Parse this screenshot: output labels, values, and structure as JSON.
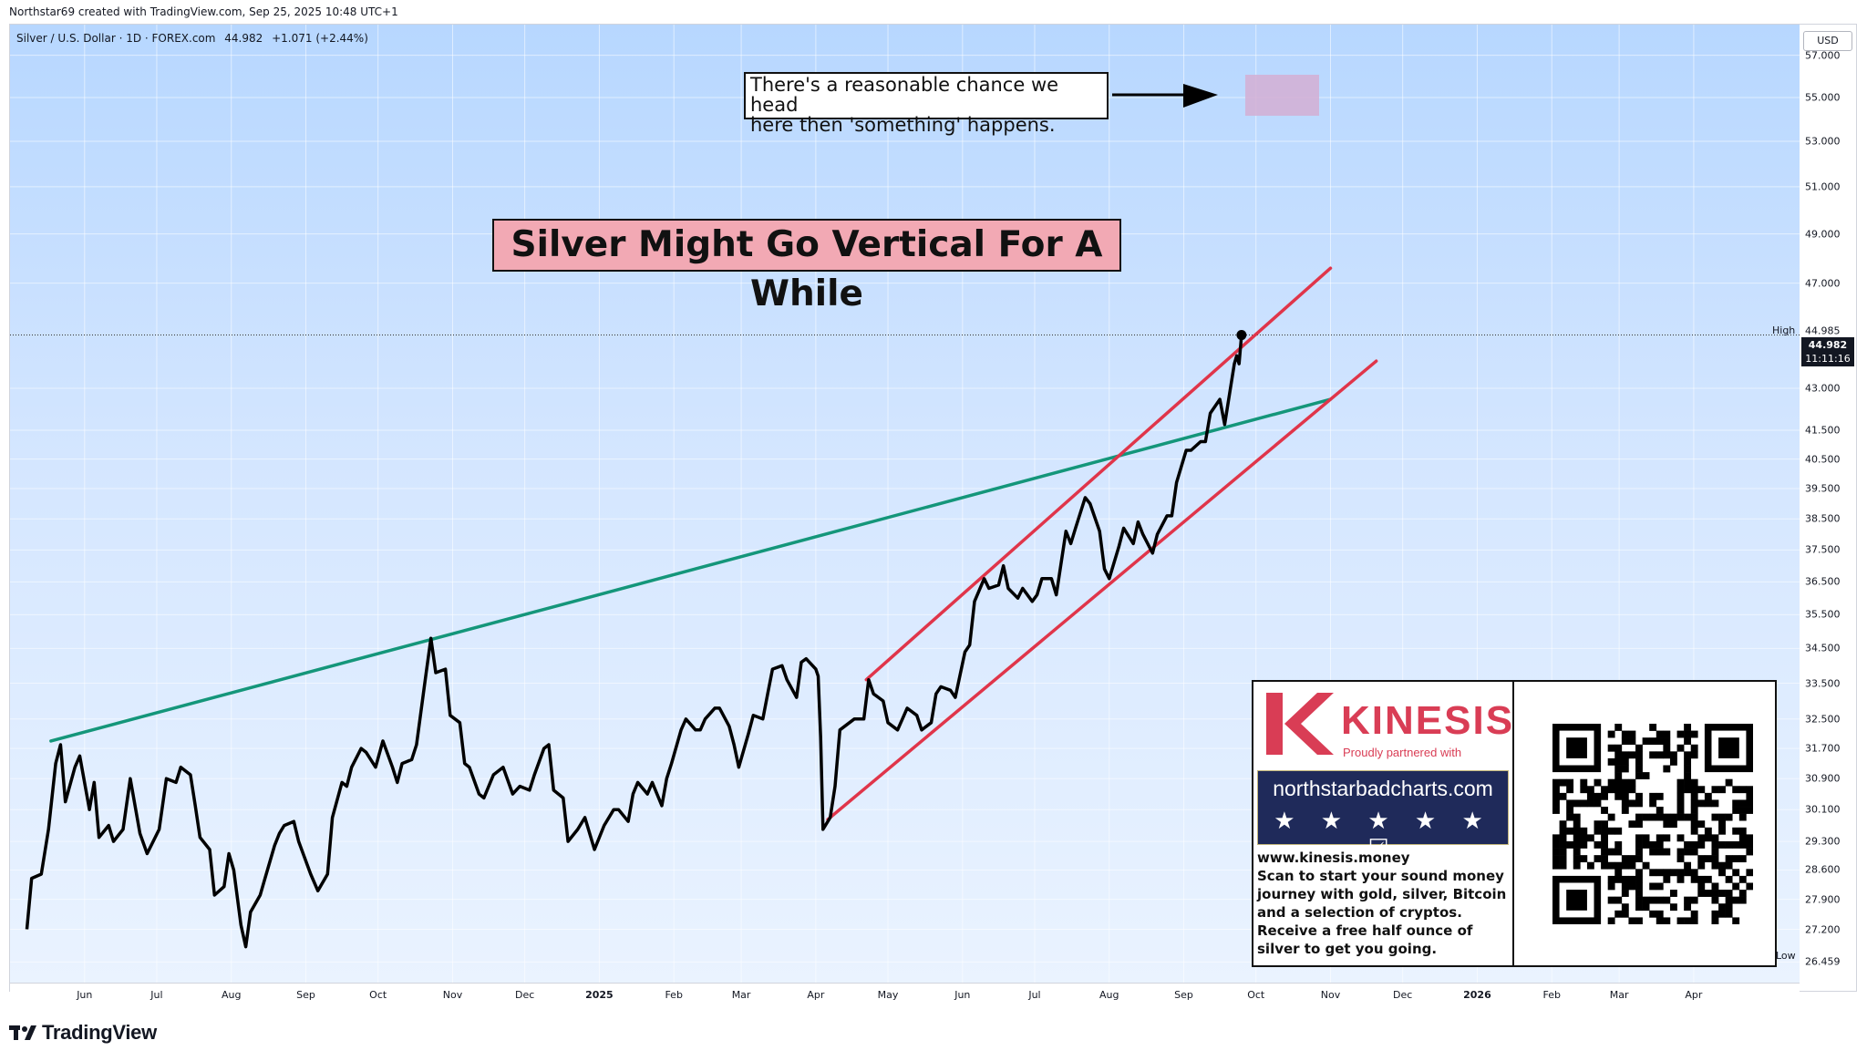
{
  "header": {
    "attribution": "Northstar69 created with TradingView.com, Sep 25, 2025 10:48 UTC+1"
  },
  "symbol": {
    "line": "Silver / U.S. Dollar · 1D · FOREX.com",
    "last": "44.982",
    "change": "+1.071 (+2.44%)"
  },
  "annotations": {
    "title": "Silver Might Go Vertical For A While",
    "note_line1": "There's a reasonable chance we head",
    "note_line2": "here then 'something' happens."
  },
  "price_axis": {
    "currency": "USD",
    "high_label": "High",
    "high_value": "44.985",
    "last_price": "44.982",
    "countdown": "11:11:16",
    "low_label": "Low",
    "low_value": "26.459"
  },
  "ad": {
    "brand": "KINESIS",
    "partner_text": "Proudly partnered with",
    "banner_url": "northstarbadcharts.com",
    "stars": "★ ★ ★ ★ ★ ☑",
    "website": "www.kinesis.money",
    "body": "Scan to start your sound money journey with gold, silver, Bitcoin and a selection of cryptos. Receive a free half ounce of silver to get you going.",
    "colors": {
      "brand_red": "#d93d55",
      "banner_navy": "#1f2a5a"
    }
  },
  "footer": {
    "logo_text": "TradingView"
  },
  "colors": {
    "price_line": "#000000",
    "trendline_green": "#14967a",
    "channel_red": "#e0354a",
    "title_box_fill": "#f2a9b4",
    "target_zone": "#d4aed3"
  },
  "chart_data": {
    "type": "line",
    "symbol": "Silver / U.S. Dollar",
    "interval": "1D",
    "source": "FOREX.com",
    "ylim": [
      26.0,
      58.5
    ],
    "y_scale": "log",
    "y_ticks": [
      "57.000",
      "55.000",
      "53.000",
      "51.000",
      "49.000",
      "47.000",
      "43.000",
      "41.500",
      "40.500",
      "39.500",
      "38.500",
      "37.500",
      "36.500",
      "35.500",
      "34.500",
      "33.500",
      "32.500",
      "31.700",
      "30.900",
      "30.100",
      "29.300",
      "28.600",
      "27.900",
      "27.200",
      "26.459"
    ],
    "x_ticks": [
      {
        "label": "Jun",
        "date": "2024-06-01"
      },
      {
        "label": "Jul",
        "date": "2024-07-01"
      },
      {
        "label": "Aug",
        "date": "2024-08-01"
      },
      {
        "label": "Sep",
        "date": "2024-09-01"
      },
      {
        "label": "Oct",
        "date": "2024-10-01"
      },
      {
        "label": "Nov",
        "date": "2024-11-01"
      },
      {
        "label": "Dec",
        "date": "2024-12-01"
      },
      {
        "label": "2025",
        "date": "2025-01-01",
        "bold": true
      },
      {
        "label": "Feb",
        "date": "2025-02-01"
      },
      {
        "label": "Mar",
        "date": "2025-03-01"
      },
      {
        "label": "Apr",
        "date": "2025-04-01"
      },
      {
        "label": "May",
        "date": "2025-05-01"
      },
      {
        "label": "Jun",
        "date": "2025-06-01"
      },
      {
        "label": "Jul",
        "date": "2025-07-01"
      },
      {
        "label": "Aug",
        "date": "2025-08-01"
      },
      {
        "label": "Sep",
        "date": "2025-09-01"
      },
      {
        "label": "Oct",
        "date": "2025-10-01"
      },
      {
        "label": "Nov",
        "date": "2025-11-01"
      },
      {
        "label": "Dec",
        "date": "2025-12-01"
      },
      {
        "label": "2026",
        "date": "2026-01-01",
        "bold": true
      },
      {
        "label": "Feb",
        "date": "2026-02-01"
      },
      {
        "label": "Mar",
        "date": "2026-03-01"
      },
      {
        "label": "Apr",
        "date": "2026-04-01"
      }
    ],
    "series": [
      {
        "values": [
          {
            "x": "2024-05-08",
            "y": 27.2
          },
          {
            "x": "2024-05-10",
            "y": 28.4
          },
          {
            "x": "2024-05-14",
            "y": 28.5
          },
          {
            "x": "2024-05-17",
            "y": 29.6
          },
          {
            "x": "2024-05-20",
            "y": 31.3
          },
          {
            "x": "2024-05-22",
            "y": 31.8
          },
          {
            "x": "2024-05-24",
            "y": 30.3
          },
          {
            "x": "2024-05-28",
            "y": 31.2
          },
          {
            "x": "2024-05-30",
            "y": 31.5
          },
          {
            "x": "2024-06-03",
            "y": 30.1
          },
          {
            "x": "2024-06-05",
            "y": 30.8
          },
          {
            "x": "2024-06-07",
            "y": 29.4
          },
          {
            "x": "2024-06-11",
            "y": 29.7
          },
          {
            "x": "2024-06-13",
            "y": 29.3
          },
          {
            "x": "2024-06-17",
            "y": 29.6
          },
          {
            "x": "2024-06-20",
            "y": 30.9
          },
          {
            "x": "2024-06-24",
            "y": 29.5
          },
          {
            "x": "2024-06-27",
            "y": 29.0
          },
          {
            "x": "2024-07-02",
            "y": 29.6
          },
          {
            "x": "2024-07-05",
            "y": 30.9
          },
          {
            "x": "2024-07-09",
            "y": 30.8
          },
          {
            "x": "2024-07-11",
            "y": 31.2
          },
          {
            "x": "2024-07-15",
            "y": 31.0
          },
          {
            "x": "2024-07-17",
            "y": 30.2
          },
          {
            "x": "2024-07-19",
            "y": 29.4
          },
          {
            "x": "2024-07-23",
            "y": 29.1
          },
          {
            "x": "2024-07-25",
            "y": 28.0
          },
          {
            "x": "2024-07-29",
            "y": 28.2
          },
          {
            "x": "2024-07-31",
            "y": 29.0
          },
          {
            "x": "2024-08-02",
            "y": 28.6
          },
          {
            "x": "2024-08-05",
            "y": 27.3
          },
          {
            "x": "2024-08-07",
            "y": 26.8
          },
          {
            "x": "2024-08-09",
            "y": 27.6
          },
          {
            "x": "2024-08-13",
            "y": 28.0
          },
          {
            "x": "2024-08-15",
            "y": 28.4
          },
          {
            "x": "2024-08-19",
            "y": 29.2
          },
          {
            "x": "2024-08-21",
            "y": 29.5
          },
          {
            "x": "2024-08-23",
            "y": 29.7
          },
          {
            "x": "2024-08-27",
            "y": 29.8
          },
          {
            "x": "2024-08-29",
            "y": 29.3
          },
          {
            "x": "2024-09-03",
            "y": 28.5
          },
          {
            "x": "2024-09-06",
            "y": 28.1
          },
          {
            "x": "2024-09-10",
            "y": 28.5
          },
          {
            "x": "2024-09-12",
            "y": 29.9
          },
          {
            "x": "2024-09-16",
            "y": 30.8
          },
          {
            "x": "2024-09-18",
            "y": 30.7
          },
          {
            "x": "2024-09-20",
            "y": 31.2
          },
          {
            "x": "2024-09-24",
            "y": 31.7
          },
          {
            "x": "2024-09-26",
            "y": 31.6
          },
          {
            "x": "2024-09-30",
            "y": 31.2
          },
          {
            "x": "2024-10-03",
            "y": 31.9
          },
          {
            "x": "2024-10-07",
            "y": 31.2
          },
          {
            "x": "2024-10-09",
            "y": 30.8
          },
          {
            "x": "2024-10-11",
            "y": 31.3
          },
          {
            "x": "2024-10-15",
            "y": 31.4
          },
          {
            "x": "2024-10-17",
            "y": 31.8
          },
          {
            "x": "2024-10-21",
            "y": 33.8
          },
          {
            "x": "2024-10-23",
            "y": 34.8
          },
          {
            "x": "2024-10-25",
            "y": 33.8
          },
          {
            "x": "2024-10-29",
            "y": 33.9
          },
          {
            "x": "2024-10-31",
            "y": 32.6
          },
          {
            "x": "2024-11-04",
            "y": 32.4
          },
          {
            "x": "2024-11-06",
            "y": 31.3
          },
          {
            "x": "2024-11-08",
            "y": 31.2
          },
          {
            "x": "2024-11-12",
            "y": 30.5
          },
          {
            "x": "2024-11-14",
            "y": 30.4
          },
          {
            "x": "2024-11-18",
            "y": 31.0
          },
          {
            "x": "2024-11-20",
            "y": 31.1
          },
          {
            "x": "2024-11-22",
            "y": 31.2
          },
          {
            "x": "2024-11-26",
            "y": 30.5
          },
          {
            "x": "2024-11-29",
            "y": 30.7
          },
          {
            "x": "2024-12-03",
            "y": 30.6
          },
          {
            "x": "2024-12-05",
            "y": 31.0
          },
          {
            "x": "2024-12-09",
            "y": 31.7
          },
          {
            "x": "2024-12-11",
            "y": 31.8
          },
          {
            "x": "2024-12-13",
            "y": 30.6
          },
          {
            "x": "2024-12-17",
            "y": 30.4
          },
          {
            "x": "2024-12-19",
            "y": 29.3
          },
          {
            "x": "2024-12-23",
            "y": 29.6
          },
          {
            "x": "2024-12-26",
            "y": 29.9
          },
          {
            "x": "2024-12-30",
            "y": 29.1
          },
          {
            "x": "2025-01-03",
            "y": 29.7
          },
          {
            "x": "2025-01-07",
            "y": 30.1
          },
          {
            "x": "2025-01-09",
            "y": 30.1
          },
          {
            "x": "2025-01-13",
            "y": 29.8
          },
          {
            "x": "2025-01-15",
            "y": 30.5
          },
          {
            "x": "2025-01-17",
            "y": 30.8
          },
          {
            "x": "2025-01-21",
            "y": 30.5
          },
          {
            "x": "2025-01-23",
            "y": 30.8
          },
          {
            "x": "2025-01-27",
            "y": 30.2
          },
          {
            "x": "2025-01-29",
            "y": 30.9
          },
          {
            "x": "2025-01-31",
            "y": 31.3
          },
          {
            "x": "2025-02-04",
            "y": 32.2
          },
          {
            "x": "2025-02-06",
            "y": 32.5
          },
          {
            "x": "2025-02-10",
            "y": 32.2
          },
          {
            "x": "2025-02-12",
            "y": 32.2
          },
          {
            "x": "2025-02-14",
            "y": 32.5
          },
          {
            "x": "2025-02-18",
            "y": 32.8
          },
          {
            "x": "2025-02-20",
            "y": 32.8
          },
          {
            "x": "2025-02-24",
            "y": 32.3
          },
          {
            "x": "2025-02-26",
            "y": 31.8
          },
          {
            "x": "2025-02-28",
            "y": 31.2
          },
          {
            "x": "2025-03-04",
            "y": 32.1
          },
          {
            "x": "2025-03-06",
            "y": 32.6
          },
          {
            "x": "2025-03-10",
            "y": 32.5
          },
          {
            "x": "2025-03-12",
            "y": 33.2
          },
          {
            "x": "2025-03-14",
            "y": 33.9
          },
          {
            "x": "2025-03-18",
            "y": 34.0
          },
          {
            "x": "2025-03-20",
            "y": 33.6
          },
          {
            "x": "2025-03-24",
            "y": 33.1
          },
          {
            "x": "2025-03-26",
            "y": 34.1
          },
          {
            "x": "2025-03-28",
            "y": 34.2
          },
          {
            "x": "2025-04-01",
            "y": 33.9
          },
          {
            "x": "2025-04-02",
            "y": 33.7
          },
          {
            "x": "2025-04-03",
            "y": 32.0
          },
          {
            "x": "2025-04-04",
            "y": 29.6
          },
          {
            "x": "2025-04-07",
            "y": 29.9
          },
          {
            "x": "2025-04-09",
            "y": 30.7
          },
          {
            "x": "2025-04-11",
            "y": 32.2
          },
          {
            "x": "2025-04-15",
            "y": 32.4
          },
          {
            "x": "2025-04-17",
            "y": 32.5
          },
          {
            "x": "2025-04-21",
            "y": 32.5
          },
          {
            "x": "2025-04-23",
            "y": 33.6
          },
          {
            "x": "2025-04-25",
            "y": 33.2
          },
          {
            "x": "2025-04-29",
            "y": 33.0
          },
          {
            "x": "2025-05-01",
            "y": 32.4
          },
          {
            "x": "2025-05-05",
            "y": 32.2
          },
          {
            "x": "2025-05-07",
            "y": 32.5
          },
          {
            "x": "2025-05-09",
            "y": 32.8
          },
          {
            "x": "2025-05-13",
            "y": 32.6
          },
          {
            "x": "2025-05-15",
            "y": 32.2
          },
          {
            "x": "2025-05-19",
            "y": 32.4
          },
          {
            "x": "2025-05-21",
            "y": 33.2
          },
          {
            "x": "2025-05-23",
            "y": 33.4
          },
          {
            "x": "2025-05-27",
            "y": 33.3
          },
          {
            "x": "2025-05-29",
            "y": 33.1
          },
          {
            "x": "2025-06-02",
            "y": 34.4
          },
          {
            "x": "2025-06-04",
            "y": 34.6
          },
          {
            "x": "2025-06-06",
            "y": 35.9
          },
          {
            "x": "2025-06-10",
            "y": 36.6
          },
          {
            "x": "2025-06-12",
            "y": 36.3
          },
          {
            "x": "2025-06-16",
            "y": 36.4
          },
          {
            "x": "2025-06-18",
            "y": 37.0
          },
          {
            "x": "2025-06-20",
            "y": 36.3
          },
          {
            "x": "2025-06-24",
            "y": 36.0
          },
          {
            "x": "2025-06-26",
            "y": 36.3
          },
          {
            "x": "2025-06-30",
            "y": 35.9
          },
          {
            "x": "2025-07-02",
            "y": 36.1
          },
          {
            "x": "2025-07-04",
            "y": 36.6
          },
          {
            "x": "2025-07-08",
            "y": 36.6
          },
          {
            "x": "2025-07-10",
            "y": 36.1
          },
          {
            "x": "2025-07-14",
            "y": 38.1
          },
          {
            "x": "2025-07-16",
            "y": 37.7
          },
          {
            "x": "2025-07-18",
            "y": 38.2
          },
          {
            "x": "2025-07-22",
            "y": 39.2
          },
          {
            "x": "2025-07-24",
            "y": 39.0
          },
          {
            "x": "2025-07-28",
            "y": 38.1
          },
          {
            "x": "2025-07-30",
            "y": 36.9
          },
          {
            "x": "2025-08-01",
            "y": 36.6
          },
          {
            "x": "2025-08-05",
            "y": 37.6
          },
          {
            "x": "2025-08-07",
            "y": 38.2
          },
          {
            "x": "2025-08-11",
            "y": 37.7
          },
          {
            "x": "2025-08-13",
            "y": 38.4
          },
          {
            "x": "2025-08-15",
            "y": 38.0
          },
          {
            "x": "2025-08-19",
            "y": 37.4
          },
          {
            "x": "2025-08-21",
            "y": 38.0
          },
          {
            "x": "2025-08-25",
            "y": 38.6
          },
          {
            "x": "2025-08-27",
            "y": 38.6
          },
          {
            "x": "2025-08-29",
            "y": 39.7
          },
          {
            "x": "2025-09-02",
            "y": 40.8
          },
          {
            "x": "2025-09-04",
            "y": 40.8
          },
          {
            "x": "2025-09-08",
            "y": 41.1
          },
          {
            "x": "2025-09-10",
            "y": 41.1
          },
          {
            "x": "2025-09-12",
            "y": 42.1
          },
          {
            "x": "2025-09-16",
            "y": 42.6
          },
          {
            "x": "2025-09-18",
            "y": 41.7
          },
          {
            "x": "2025-09-22",
            "y": 43.9
          },
          {
            "x": "2025-09-23",
            "y": 44.2
          },
          {
            "x": "2025-09-24",
            "y": 43.9
          },
          {
            "x": "2025-09-25",
            "y": 44.982
          }
        ]
      }
    ],
    "trendlines": [
      {
        "kind": "trendline",
        "color": "#14967a",
        "from": {
          "x": "2024-05-18",
          "y": 31.9
        },
        "to": {
          "x": "2025-11-01",
          "y": 42.6
        }
      },
      {
        "kind": "channel-upper",
        "color": "#e0354a",
        "from": {
          "x": "2025-04-22",
          "y": 33.6
        },
        "to": {
          "x": "2025-11-01",
          "y": 47.6
        }
      },
      {
        "kind": "channel-lower",
        "color": "#e0354a",
        "from": {
          "x": "2025-04-06",
          "y": 29.85
        },
        "to": {
          "x": "2025-11-20",
          "y": 44.0
        }
      }
    ],
    "target_zone": {
      "x_from": "2025-10-05",
      "x_to": "2025-11-01",
      "y_from": 55.0,
      "y_to": 57.0
    },
    "last_price_marker": {
      "x": "2025-09-25",
      "y": 44.982
    }
  }
}
